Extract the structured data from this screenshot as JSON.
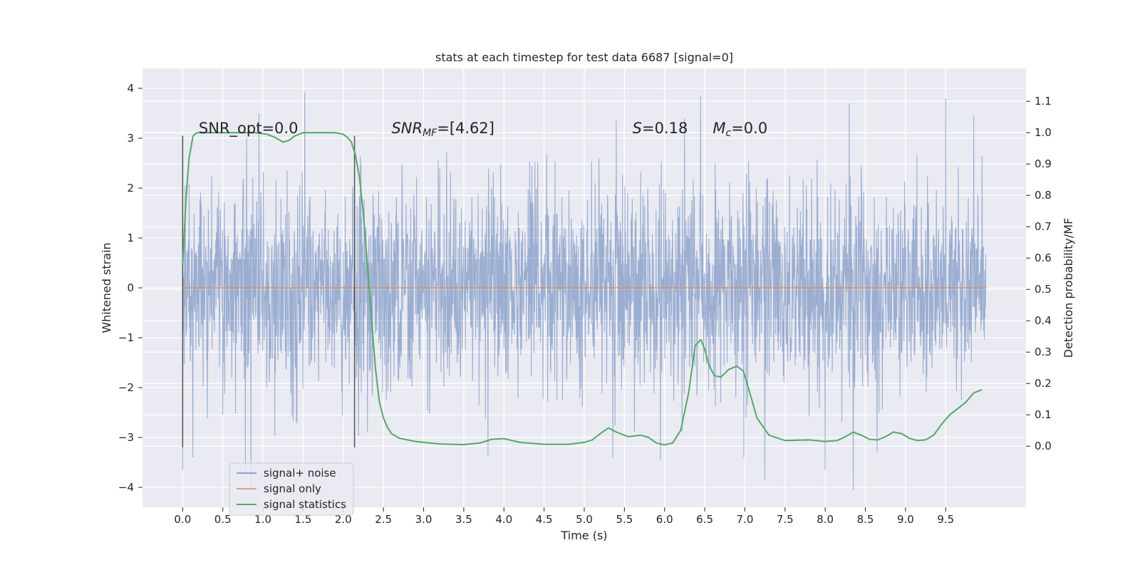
{
  "chart_data": {
    "type": "line",
    "title": "stats at each timestep for test data 6687 [signal=0]",
    "xlabel": "Time (s)",
    "ylabel": "Whitened strain",
    "ylabel_right": "Detection probability/MF",
    "xlim": [
      -0.5,
      10.5
    ],
    "ylim": [
      -4.4,
      4.4
    ],
    "ylim_right": [
      -0.195,
      1.205
    ],
    "x_ticks": [
      0.0,
      0.5,
      1.0,
      1.5,
      2.0,
      2.5,
      3.0,
      3.5,
      4.0,
      4.5,
      5.0,
      5.5,
      6.0,
      6.5,
      7.0,
      7.5,
      8.0,
      8.5,
      9.0,
      9.5
    ],
    "x_tick_labels": [
      "0.0",
      "0.5",
      "1.0",
      "1.5",
      "2.0",
      "2.5",
      "3.0",
      "3.5",
      "4.0",
      "4.5",
      "5.0",
      "5.5",
      "6.0",
      "6.5",
      "7.0",
      "7.5",
      "8.0",
      "8.5",
      "9.0",
      "9.5"
    ],
    "y_ticks": [
      -4,
      -3,
      -2,
      -1,
      0,
      1,
      2,
      3,
      4
    ],
    "y_tick_labels": [
      "−4",
      "−3",
      "−2",
      "−1",
      "0",
      "1",
      "2",
      "3",
      "4"
    ],
    "y_ticks_right": [
      0.0,
      0.1,
      0.2,
      0.3,
      0.4,
      0.5,
      0.6,
      0.7,
      0.8,
      0.9,
      1.0,
      1.1
    ],
    "y_tick_labels_right": [
      "0.0",
      "0.1",
      "0.2",
      "0.3",
      "0.4",
      "0.5",
      "0.6",
      "0.7",
      "0.8",
      "0.9",
      "1.0",
      "1.1"
    ],
    "grid": true,
    "legend_position": "lower-left",
    "series": [
      {
        "name": "signal+ noise",
        "color": "#4c72b0",
        "kind": "noise",
        "x_range": [
          0.0,
          10.0
        ],
        "typical_amplitude": 1.0,
        "peaks": [
          {
            "x": 0.0,
            "y": -3.65
          },
          {
            "x": 0.78,
            "y": -3.7
          },
          {
            "x": 0.85,
            "y": -4.1
          },
          {
            "x": 1.52,
            "y": 3.92
          },
          {
            "x": 3.8,
            "y": -3.35
          },
          {
            "x": 6.45,
            "y": 3.85
          },
          {
            "x": 5.95,
            "y": -3.45
          },
          {
            "x": 7.25,
            "y": -3.85
          },
          {
            "x": 8.0,
            "y": -3.65
          },
          {
            "x": 8.35,
            "y": -4.05
          },
          {
            "x": 8.3,
            "y": 3.7
          },
          {
            "x": 9.5,
            "y": 3.8
          },
          {
            "x": 9.85,
            "y": 3.45
          },
          {
            "x": 0.95,
            "y": 3.5
          },
          {
            "x": 5.4,
            "y": 3.35
          }
        ]
      },
      {
        "name": "signal only",
        "color": "#dd8452",
        "x": [
          0.0,
          10.0
        ],
        "y": [
          0.0,
          0.0
        ]
      },
      {
        "name": "signal statistics",
        "color": "#55a868",
        "axis": "right",
        "x": [
          0.0,
          0.04,
          0.08,
          0.13,
          0.18,
          0.25,
          0.35,
          0.5,
          0.7,
          0.9,
          1.05,
          1.15,
          1.25,
          1.32,
          1.4,
          1.5,
          1.6,
          1.75,
          1.9,
          2.0,
          2.05,
          2.1,
          2.15,
          2.2,
          2.25,
          2.3,
          2.35,
          2.4,
          2.45,
          2.5,
          2.55,
          2.6,
          2.7,
          2.9,
          3.2,
          3.5,
          3.7,
          3.85,
          4.0,
          4.2,
          4.5,
          4.8,
          5.0,
          5.1,
          5.2,
          5.3,
          5.4,
          5.55,
          5.7,
          5.8,
          5.9,
          6.0,
          6.1,
          6.2,
          6.3,
          6.38,
          6.45,
          6.5,
          6.55,
          6.62,
          6.7,
          6.8,
          6.9,
          6.98,
          7.05,
          7.15,
          7.3,
          7.5,
          7.8,
          8.0,
          8.15,
          8.25,
          8.35,
          8.45,
          8.55,
          8.65,
          8.75,
          8.85,
          8.95,
          9.05,
          9.15,
          9.25,
          9.35,
          9.45,
          9.55,
          9.65,
          9.75,
          9.85,
          9.95
        ],
        "y": [
          0.58,
          0.78,
          0.92,
          0.99,
          1.0,
          1.0,
          1.0,
          1.0,
          1.0,
          1.0,
          0.995,
          0.985,
          0.97,
          0.975,
          0.99,
          1.0,
          1.0,
          1.0,
          1.0,
          0.995,
          0.985,
          0.97,
          0.93,
          0.86,
          0.74,
          0.58,
          0.41,
          0.25,
          0.14,
          0.09,
          0.06,
          0.04,
          0.025,
          0.015,
          0.007,
          0.005,
          0.01,
          0.022,
          0.024,
          0.012,
          0.006,
          0.006,
          0.012,
          0.02,
          0.04,
          0.058,
          0.045,
          0.03,
          0.035,
          0.028,
          0.01,
          0.004,
          0.01,
          0.05,
          0.17,
          0.32,
          0.34,
          0.31,
          0.26,
          0.225,
          0.22,
          0.245,
          0.255,
          0.24,
          0.18,
          0.09,
          0.035,
          0.018,
          0.02,
          0.015,
          0.018,
          0.03,
          0.045,
          0.035,
          0.022,
          0.02,
          0.03,
          0.045,
          0.04,
          0.025,
          0.018,
          0.02,
          0.035,
          0.07,
          0.1,
          0.12,
          0.14,
          0.17,
          0.18
        ]
      }
    ],
    "vertical_lines": [
      {
        "x": 0.0,
        "y_from": -3.2,
        "y_to": 3.05,
        "color": "#555555"
      },
      {
        "x": 2.14,
        "y_from": -3.2,
        "y_to": 3.05,
        "color": "#555555"
      }
    ],
    "annotations": [
      {
        "x": 0.2,
        "y": 3.1,
        "parts": [
          {
            "text": "SNR_opt=0.0",
            "style": "normal"
          }
        ]
      },
      {
        "x": 2.6,
        "y": 3.1,
        "parts": [
          {
            "text": "SNR",
            "style": "italic"
          },
          {
            "text": "MF",
            "style": "italic-sub"
          },
          {
            "text": "=[4.62]",
            "style": "normal"
          }
        ]
      },
      {
        "x": 5.6,
        "y": 3.1,
        "parts": [
          {
            "text": "S",
            "style": "italic"
          },
          {
            "text": "=0.18",
            "style": "normal"
          }
        ]
      },
      {
        "x": 6.6,
        "y": 3.1,
        "parts": [
          {
            "text": "M",
            "style": "italic"
          },
          {
            "text": "c",
            "style": "italic-sub"
          },
          {
            "text": "=0.0",
            "style": "normal"
          }
        ]
      }
    ]
  }
}
